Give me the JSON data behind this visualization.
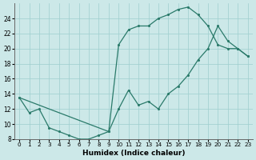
{
  "xlabel": "Humidex (Indice chaleur)",
  "xlim": [
    -0.5,
    23.5
  ],
  "ylim": [
    8,
    26
  ],
  "xticks": [
    0,
    1,
    2,
    3,
    4,
    5,
    6,
    7,
    8,
    9,
    10,
    11,
    12,
    13,
    14,
    15,
    16,
    17,
    18,
    19,
    20,
    21,
    22,
    23
  ],
  "yticks": [
    8,
    10,
    12,
    14,
    16,
    18,
    20,
    22,
    24
  ],
  "bg_color": "#cce8e8",
  "line_color": "#2a7a6a",
  "line1_x": [
    0,
    1,
    2,
    3,
    4,
    5,
    6,
    7,
    8,
    9,
    10,
    11,
    12,
    13,
    14,
    15,
    16,
    17,
    18,
    19,
    20,
    21,
    22,
    23
  ],
  "line1_y": [
    13.5,
    11.5,
    12.0,
    9.5,
    9.0,
    8.5,
    8.0,
    8.0,
    8.5,
    9.0,
    20.5,
    22.5,
    23.0,
    23.0,
    24.0,
    24.5,
    25.2,
    25.5,
    24.5,
    23.0,
    20.5,
    20.0,
    20.0,
    19.0
  ],
  "line2_x": [
    0,
    9,
    10,
    11,
    12,
    13,
    14,
    15,
    16,
    17,
    18,
    19,
    20,
    21,
    22,
    23
  ],
  "line2_y": [
    13.5,
    9.0,
    12.0,
    14.5,
    12.5,
    13.0,
    12.0,
    14.0,
    15.0,
    16.5,
    18.5,
    20.0,
    23.0,
    21.0,
    20.0,
    19.0
  ]
}
